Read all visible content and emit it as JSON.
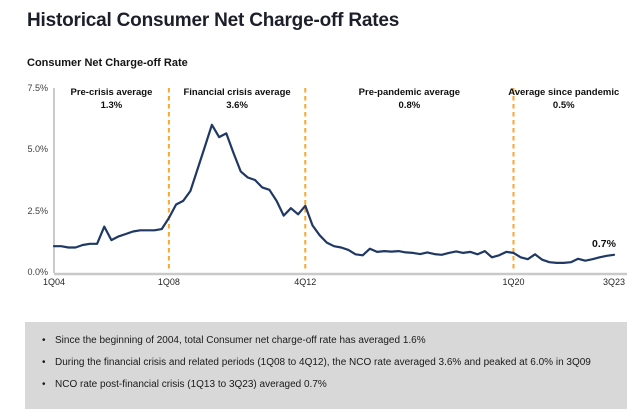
{
  "page": {
    "title": "Historical Consumer Net Charge-off Rates"
  },
  "chart_data": {
    "type": "line",
    "title": "Consumer Net Charge-off Rate",
    "series_name": "Consumer net charge-off rate",
    "unit": "%",
    "ylim": [
      0,
      7.5
    ],
    "grid": false,
    "legend": "none",
    "colors": {
      "line": "#1F3864",
      "divider": "#F8A72F",
      "axis": "#a6a6a6",
      "baseline": "#c9c9c9"
    },
    "x": [
      "1Q04",
      "2Q04",
      "3Q04",
      "4Q04",
      "1Q05",
      "2Q05",
      "3Q05",
      "4Q05",
      "1Q06",
      "2Q06",
      "3Q06",
      "4Q06",
      "1Q07",
      "2Q07",
      "3Q07",
      "4Q07",
      "1Q08",
      "2Q08",
      "3Q08",
      "4Q08",
      "1Q09",
      "2Q09",
      "3Q09",
      "4Q09",
      "1Q10",
      "2Q10",
      "3Q10",
      "4Q10",
      "1Q11",
      "2Q11",
      "3Q11",
      "4Q11",
      "1Q12",
      "2Q12",
      "3Q12",
      "4Q12",
      "1Q13",
      "2Q13",
      "3Q13",
      "4Q13",
      "1Q14",
      "2Q14",
      "3Q14",
      "4Q14",
      "1Q15",
      "2Q15",
      "3Q15",
      "4Q15",
      "1Q16",
      "2Q16",
      "3Q16",
      "4Q16",
      "1Q17",
      "2Q17",
      "3Q17",
      "4Q17",
      "1Q18",
      "2Q18",
      "3Q18",
      "4Q18",
      "1Q19",
      "2Q19",
      "3Q19",
      "4Q19",
      "1Q20",
      "2Q20",
      "3Q20",
      "4Q20",
      "1Q21",
      "2Q21",
      "3Q21",
      "4Q21",
      "1Q22",
      "2Q22",
      "3Q22",
      "4Q22",
      "1Q23",
      "2Q23",
      "3Q23"
    ],
    "values": [
      1.05,
      1.05,
      1.0,
      1.0,
      1.1,
      1.15,
      1.15,
      1.85,
      1.3,
      1.45,
      1.55,
      1.65,
      1.7,
      1.7,
      1.7,
      1.75,
      2.2,
      2.75,
      2.9,
      3.3,
      4.2,
      5.1,
      6.0,
      5.5,
      5.65,
      4.85,
      4.1,
      3.85,
      3.75,
      3.45,
      3.35,
      2.9,
      2.3,
      2.6,
      2.35,
      2.7,
      1.9,
      1.5,
      1.2,
      1.05,
      1.0,
      0.9,
      0.72,
      0.68,
      0.95,
      0.82,
      0.85,
      0.83,
      0.85,
      0.8,
      0.78,
      0.73,
      0.8,
      0.73,
      0.7,
      0.78,
      0.84,
      0.78,
      0.82,
      0.72,
      0.85,
      0.6,
      0.68,
      0.82,
      0.78,
      0.6,
      0.52,
      0.72,
      0.5,
      0.4,
      0.37,
      0.37,
      0.4,
      0.54,
      0.46,
      0.52,
      0.6,
      0.66,
      0.7
    ],
    "y_ticks": [
      {
        "value": 7.5,
        "label": "7.5%"
      },
      {
        "value": 5.0,
        "label": "5.0%"
      },
      {
        "value": 2.5,
        "label": "2.5%"
      },
      {
        "value": 0.0,
        "label": "0.0%"
      }
    ],
    "x_ticks": [
      {
        "q": 0,
        "label": "1Q04"
      },
      {
        "q": 16,
        "label": "1Q08"
      },
      {
        "q": 35,
        "label": "4Q12"
      },
      {
        "q": 64,
        "label": "1Q20"
      },
      {
        "q": 78,
        "label": "3Q23"
      }
    ],
    "dividers": [
      {
        "q": 16
      },
      {
        "q": 35
      },
      {
        "q": 64
      }
    ],
    "annotations": [
      {
        "label": "Pre-crisis average",
        "value": "1.3%",
        "center_q": 8
      },
      {
        "label": "Financial crisis average",
        "value": "3.6%",
        "center_q": 25.5
      },
      {
        "label": "Pre-pandemic average",
        "value": "0.8%",
        "center_q": 49.5
      },
      {
        "label": "Average since pandemic",
        "value": "0.5%",
        "center_q": 71
      }
    ],
    "end_label": "0.7%",
    "peak_note": "peaked at 6.0% in 3Q09"
  },
  "footnotes": {
    "items": [
      "Since the beginning of 2004, total Consumer net charge-off rate has averaged 1.6%",
      "During the financial crisis and related periods (1Q08 to 4Q12), the NCO rate averaged 3.6% and peaked at 6.0% in 3Q09",
      "NCO rate post-financial crisis (1Q13 to 3Q23) averaged 0.7%"
    ]
  }
}
